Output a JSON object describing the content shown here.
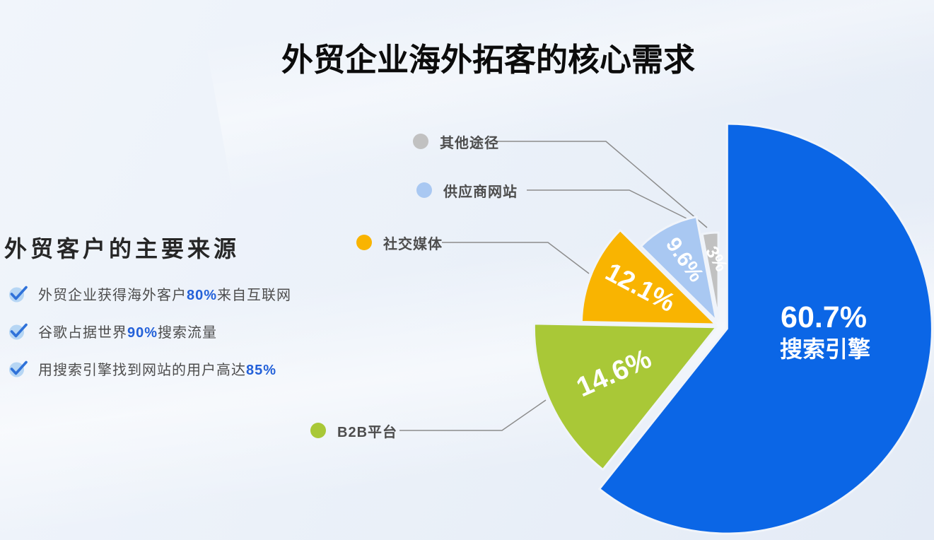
{
  "page": {
    "title": "外贸企业海外拓客的核心需求"
  },
  "left_panel": {
    "heading": "外贸客户的主要来源",
    "bullet_icon": "check-circle",
    "highlight_color": "#2361d9",
    "bullets": [
      {
        "prefix": "外贸企业获得海外客户",
        "highlight": "80%",
        "suffix": "来自互联网"
      },
      {
        "prefix": "谷歌占据世界",
        "highlight": "90%",
        "suffix": "搜索流量"
      },
      {
        "prefix": "用搜索引擎找到网站的用户高达",
        "highlight": "85%",
        "suffix": ""
      }
    ]
  },
  "chart_data": {
    "type": "pie",
    "unit": "%",
    "direction": "clockwise",
    "start_angle_deg": 0,
    "exploded": true,
    "legend_position": "left-callouts",
    "legend_text_color": "#4d4d4d",
    "connector_color": "#8c8c8c",
    "slices": [
      {
        "label": "搜索引擎",
        "value": 60.7,
        "display": "60.7%",
        "color": "#0b66e6",
        "name": "search-engine",
        "inner_label": true
      },
      {
        "label": "B2B平台",
        "value": 14.6,
        "display": "14.6%",
        "color": "#a9c837",
        "name": "b2b-platform"
      },
      {
        "label": "社交媒体",
        "value": 12.1,
        "display": "12.1%",
        "color": "#f9b401",
        "name": "social-media"
      },
      {
        "label": "供应商网站",
        "value": 9.6,
        "display": "9.6%",
        "color": "#a9c8f2",
        "name": "supplier-website"
      },
      {
        "label": "其他途径",
        "value": 3,
        "display": "3%",
        "color": "#c1c1c1",
        "name": "other-channels"
      }
    ]
  }
}
